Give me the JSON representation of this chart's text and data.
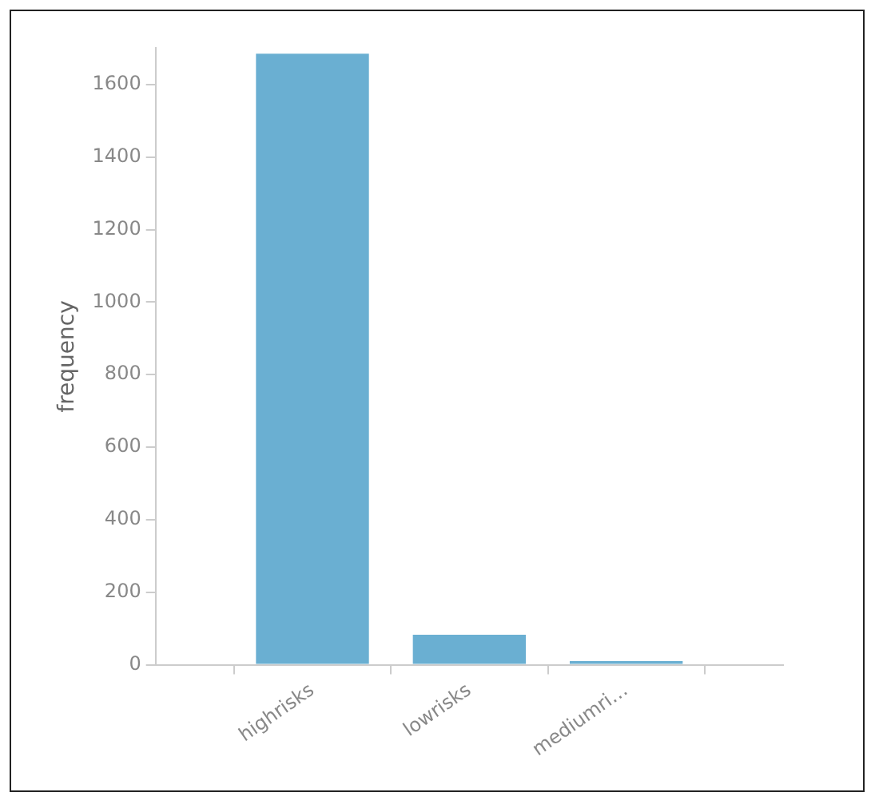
{
  "chart_data": {
    "type": "bar",
    "ylabel": "frequency",
    "categories": [
      "highrisks",
      "lowrisks",
      "mediumri…"
    ],
    "values": [
      1685,
      83,
      10
    ],
    "color": "#6aafd2",
    "ylim": [
      0,
      1700
    ],
    "yticks": [
      0,
      200,
      400,
      600,
      800,
      1000,
      1200,
      1400,
      1600
    ],
    "grid": false,
    "legend": false
  }
}
